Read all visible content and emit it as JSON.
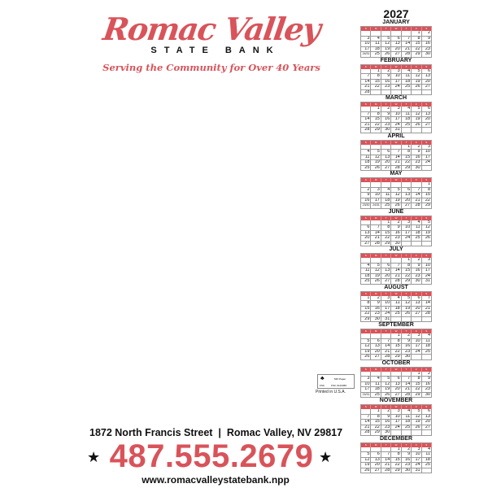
{
  "logo": {
    "name": "Romac Valley",
    "sub": "STATE BANK",
    "tagline": "Serving the Community for Over 40 Years"
  },
  "calendar": {
    "year": "2027",
    "weekdays": [
      "S",
      "M",
      "T",
      "W",
      "T",
      "F",
      "S"
    ],
    "accent": "#d9535a",
    "months": [
      {
        "name": "JANUARY",
        "start": 5,
        "days": 31
      },
      {
        "name": "FEBRUARY",
        "start": 1,
        "days": 28
      },
      {
        "name": "MARCH",
        "start": 1,
        "days": 31
      },
      {
        "name": "APRIL",
        "start": 4,
        "days": 30
      },
      {
        "name": "MAY",
        "start": 6,
        "days": 31
      },
      {
        "name": "JUNE",
        "start": 2,
        "days": 30
      },
      {
        "name": "JULY",
        "start": 4,
        "days": 31
      },
      {
        "name": "AUGUST",
        "start": 0,
        "days": 31
      },
      {
        "name": "SEPTEMBER",
        "start": 3,
        "days": 30
      },
      {
        "name": "OCTOBER",
        "start": 5,
        "days": 31
      },
      {
        "name": "NOVEMBER",
        "start": 1,
        "days": 30
      },
      {
        "name": "DECEMBER",
        "start": 3,
        "days": 31
      }
    ]
  },
  "fsc": {
    "label": "FSC",
    "mix": "MIX Paper",
    "code": "FSC C123456"
  },
  "printed": "Printed in U.S.A.",
  "contact": {
    "address": "1872 North Francis Street  |  Romac Valley, NV 29817",
    "phone": "487.555.2679",
    "website": "www.romacvalleystatebank.npp",
    "star": "★"
  }
}
